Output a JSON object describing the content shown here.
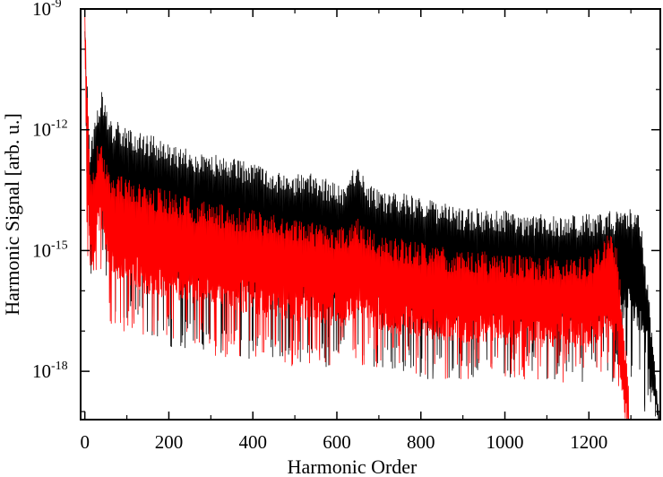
{
  "chart_data": {
    "type": "line",
    "title": "",
    "xlabel": "Harmonic Order",
    "ylabel": "Harmonic Signal [arb. u.]",
    "yscale": "log",
    "xlim": [
      -10,
      1370
    ],
    "ylim_exponent": [
      -19.2,
      -9
    ],
    "x_ticks": [
      0,
      200,
      400,
      600,
      800,
      1000,
      1200
    ],
    "x_tick_labels": [
      "0",
      "200",
      "400",
      "600",
      "800",
      "1000",
      "1200"
    ],
    "y_ticks": [
      {
        "base": "10",
        "exp": "-9",
        "value_exponent": -9
      },
      {
        "base": "10",
        "exp": "-12",
        "value_exponent": -12
      },
      {
        "base": "10",
        "exp": "-15",
        "value_exponent": -15
      },
      {
        "base": "10",
        "exp": "-18",
        "value_exponent": -18
      }
    ],
    "grid": false,
    "legend": "none",
    "series": [
      {
        "color": "#000000",
        "envelope_x": [
          0,
          5,
          12,
          20,
          30,
          40,
          50,
          60,
          80,
          100,
          150,
          200,
          250,
          300,
          350,
          400,
          450,
          500,
          550,
          600,
          630,
          650,
          665,
          700,
          750,
          800,
          850,
          900,
          950,
          1000,
          1050,
          1100,
          1150,
          1200,
          1250,
          1280,
          1295,
          1310,
          1325,
          1340,
          1355,
          1370
        ],
        "envelope_log_peak": [
          -9.0,
          -10.5,
          -12.4,
          -12.0,
          -11.3,
          -11.0,
          -11.4,
          -11.7,
          -11.8,
          -11.9,
          -12.1,
          -12.3,
          -12.45,
          -12.55,
          -12.7,
          -12.8,
          -12.95,
          -13.05,
          -13.1,
          -13.3,
          -13.3,
          -12.5,
          -13.3,
          -13.45,
          -13.55,
          -13.65,
          -13.8,
          -13.95,
          -13.95,
          -14.0,
          -14.05,
          -14.1,
          -14.1,
          -14.05,
          -14.0,
          -14.0,
          -13.9,
          -13.9,
          -14.3,
          -15.8,
          -17.5,
          -19.2
        ],
        "envelope_log_base": [
          -9.0,
          -12.5,
          -14.2,
          -14.0,
          -13.3,
          -13.0,
          -13.6,
          -14.1,
          -14.3,
          -14.5,
          -14.6,
          -14.8,
          -14.9,
          -15.0,
          -15.1,
          -15.2,
          -15.25,
          -15.3,
          -15.35,
          -15.4,
          -15.4,
          -14.8,
          -15.4,
          -15.6,
          -15.7,
          -15.8,
          -15.85,
          -15.9,
          -15.9,
          -15.95,
          -16.0,
          -16.0,
          -16.0,
          -15.95,
          -15.9,
          -15.9,
          -15.8,
          -15.9,
          -16.3,
          -17.0,
          -18.0,
          -19.2
        ],
        "envelope_log_min": [
          -9.0,
          -14.5,
          -15.5,
          -15.8,
          -15.6,
          -15.3,
          -16.0,
          -16.5,
          -16.8,
          -17.0,
          -17.2,
          -17.4,
          -17.5,
          -17.6,
          -17.7,
          -17.8,
          -17.85,
          -17.9,
          -17.9,
          -17.9,
          -17.9,
          -17.5,
          -17.9,
          -18.0,
          -18.1,
          -18.2,
          -18.2,
          -18.2,
          -18.2,
          -18.3,
          -18.3,
          -18.3,
          -18.3,
          -18.3,
          -18.3,
          -18.3,
          -18.2,
          -18.4,
          -18.8,
          -19.2,
          -19.2,
          -19.2
        ]
      },
      {
        "color": "#ff0000",
        "envelope_x": [
          0,
          5,
          12,
          20,
          30,
          40,
          50,
          60,
          80,
          100,
          150,
          200,
          250,
          300,
          350,
          400,
          450,
          500,
          550,
          600,
          630,
          650,
          665,
          700,
          750,
          800,
          850,
          900,
          950,
          1000,
          1050,
          1100,
          1150,
          1200,
          1240,
          1255,
          1265,
          1275,
          1285,
          1295,
          1300
        ],
        "envelope_log_peak": [
          -9.0,
          -10.8,
          -12.8,
          -12.9,
          -12.4,
          -12.3,
          -12.8,
          -13.0,
          -13.1,
          -13.2,
          -13.4,
          -13.5,
          -13.7,
          -13.8,
          -13.9,
          -14.0,
          -14.1,
          -14.2,
          -14.3,
          -14.4,
          -14.4,
          -14.2,
          -14.4,
          -14.6,
          -14.7,
          -14.8,
          -14.9,
          -15.0,
          -15.0,
          -15.1,
          -15.1,
          -15.15,
          -15.2,
          -15.1,
          -14.6,
          -14.4,
          -14.8,
          -15.8,
          -17.0,
          -18.5,
          -19.2
        ],
        "envelope_log_base": [
          -9.0,
          -12.8,
          -14.5,
          -14.4,
          -13.9,
          -13.7,
          -14.3,
          -14.7,
          -14.9,
          -15.0,
          -15.2,
          -15.3,
          -15.4,
          -15.5,
          -15.6,
          -15.7,
          -15.8,
          -15.85,
          -15.9,
          -16.0,
          -16.0,
          -15.7,
          -16.0,
          -16.1,
          -16.2,
          -16.3,
          -16.35,
          -16.4,
          -16.4,
          -16.45,
          -16.5,
          -16.5,
          -16.55,
          -16.5,
          -16.3,
          -16.2,
          -16.6,
          -17.3,
          -18.2,
          -19.0,
          -19.2
        ],
        "envelope_log_min": [
          -9.0,
          -15.0,
          -16.0,
          -16.2,
          -16.3,
          -16.1,
          -16.6,
          -17.0,
          -17.1,
          -17.2,
          -17.3,
          -17.4,
          -17.5,
          -17.6,
          -17.7,
          -17.8,
          -17.8,
          -17.9,
          -17.9,
          -17.9,
          -17.9,
          -17.8,
          -17.9,
          -18.0,
          -18.1,
          -18.2,
          -18.2,
          -18.25,
          -18.3,
          -18.3,
          -18.3,
          -18.3,
          -18.3,
          -18.3,
          -18.2,
          -18.1,
          -18.4,
          -18.9,
          -19.2,
          -19.2,
          -19.2
        ]
      }
    ]
  }
}
